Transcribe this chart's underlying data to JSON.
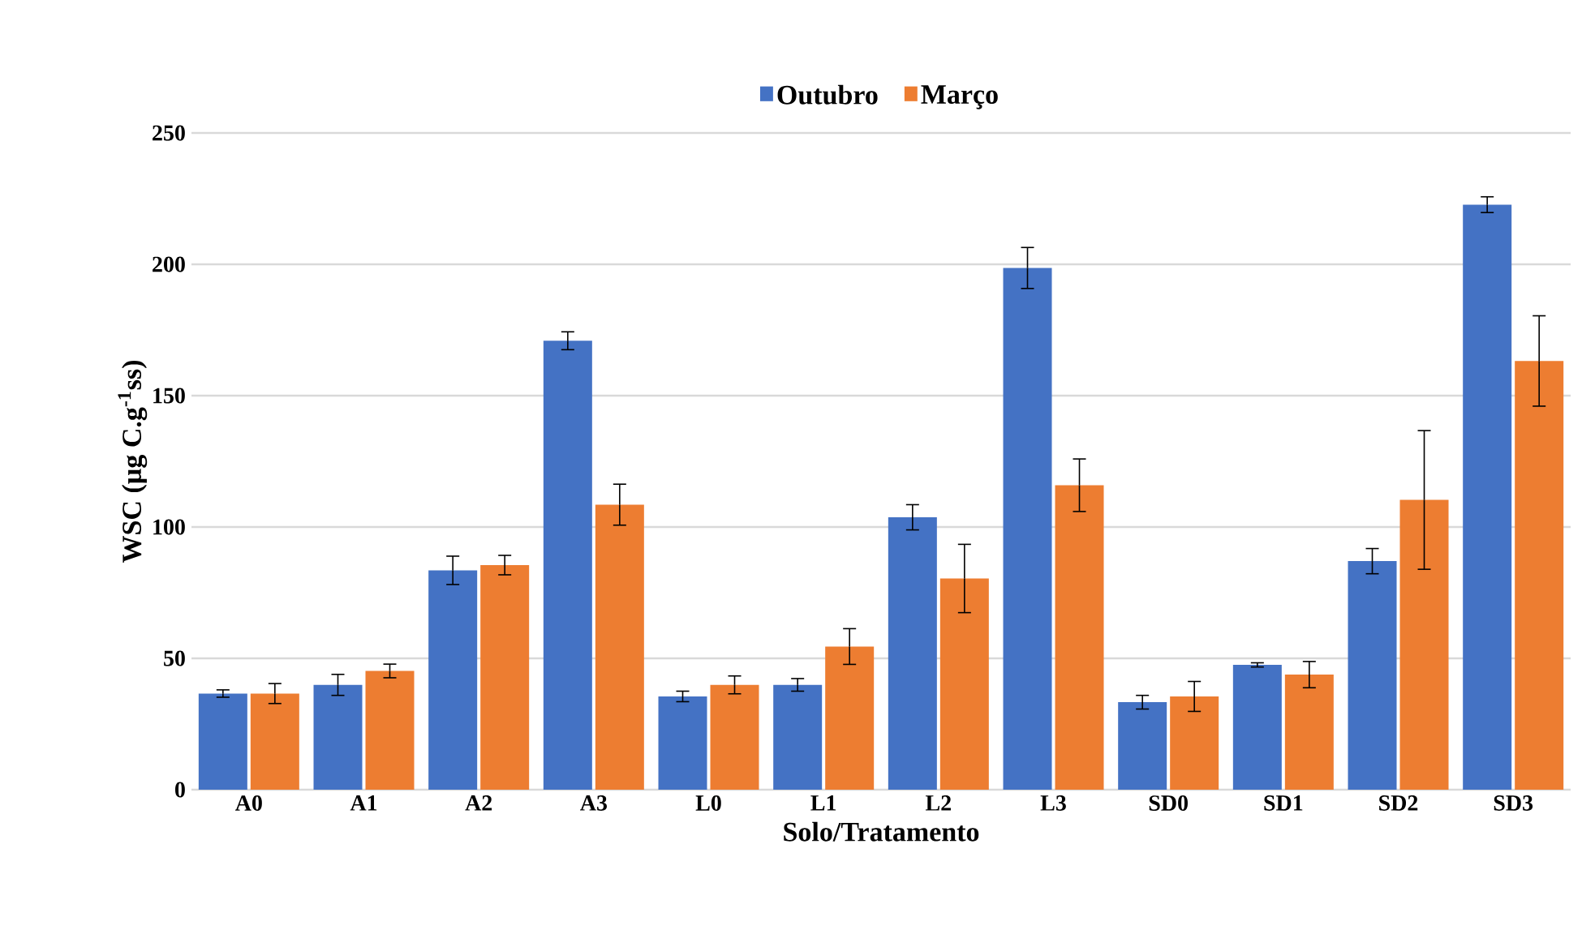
{
  "chart_data": {
    "type": "bar",
    "xlabel": "Solo/Tratamento",
    "ylabel": "WSC (µg C.g$^{-1}$ss)",
    "categories": [
      "A0",
      "A1",
      "A2",
      "A3",
      "L0",
      "L1",
      "L2",
      "L3",
      "SD0",
      "SD1",
      "SD2",
      "SD3"
    ],
    "series": [
      {
        "name": "Outubro",
        "color": "#4472c4",
        "values": [
          36.6,
          39.9,
          83.5,
          170.9,
          35.5,
          39.9,
          103.7,
          198.6,
          33.3,
          47.5,
          87,
          222.7
        ],
        "errors": [
          1.4,
          4,
          5.4,
          3.4,
          2,
          2.4,
          4.8,
          7.8,
          2.6,
          0.8,
          4.8,
          3
        ]
      },
      {
        "name": "Março",
        "color": "#ed7d31",
        "values": [
          36.6,
          45.2,
          85.5,
          108.5,
          39.9,
          54.5,
          80.4,
          115.9,
          35.5,
          43.8,
          110.3,
          163.2
        ],
        "errors": [
          3.8,
          2.6,
          3.7,
          7.8,
          3.4,
          6.8,
          13,
          10,
          5.7,
          5,
          26.4,
          17.2
        ]
      }
    ],
    "ylim": [
      0,
      250
    ],
    "yticks": [
      0,
      50,
      100,
      150,
      200,
      250
    ],
    "grid": "y",
    "legend": "top"
  }
}
